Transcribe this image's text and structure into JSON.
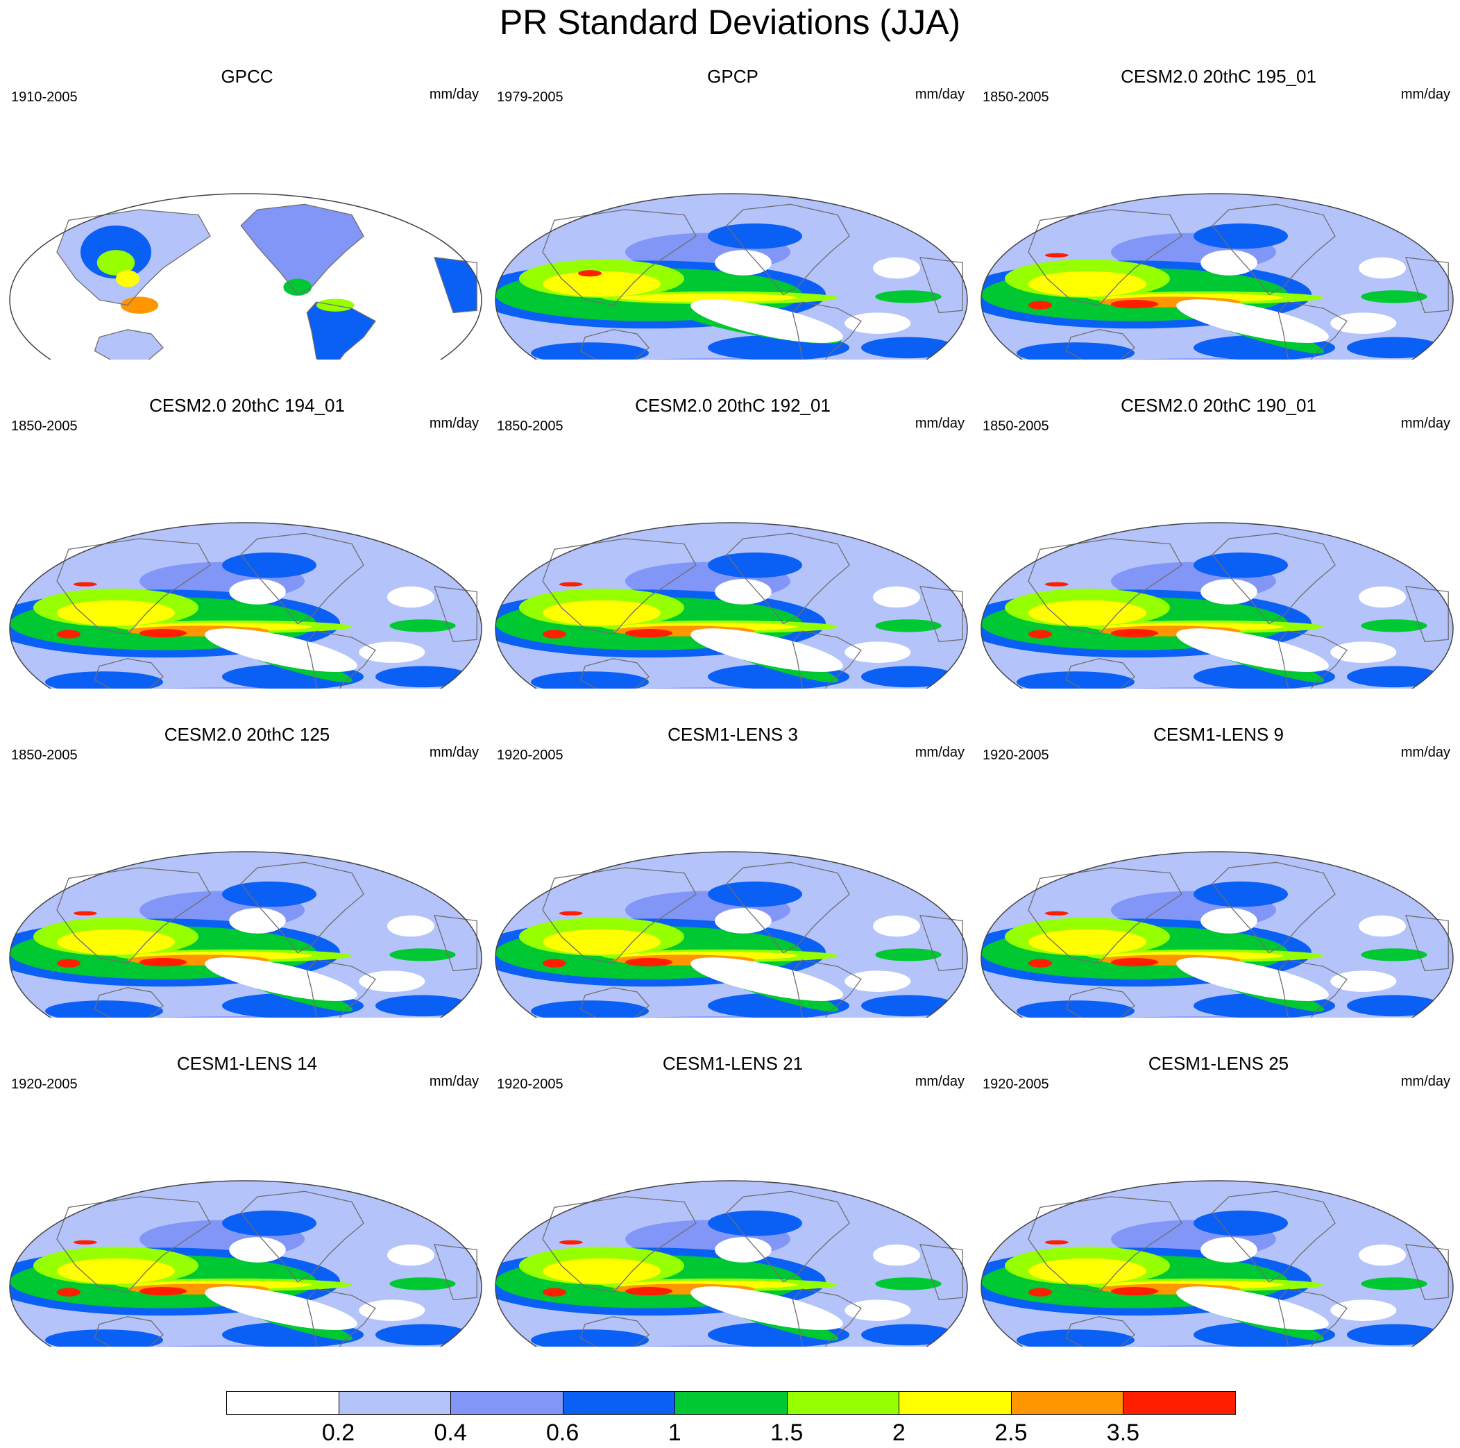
{
  "title": "PR Standard Deviations (JJA)",
  "units": "mm/day",
  "panels": [
    {
      "title": "GPCC",
      "years": "1910-2005",
      "kind": "gpcc"
    },
    {
      "title": "GPCP",
      "years": "1979-2005",
      "kind": "gpcp"
    },
    {
      "title": "CESM2.0 20thC 195_01",
      "years": "1850-2005",
      "kind": "cesm2"
    },
    {
      "title": "CESM2.0 20thC 194_01",
      "years": "1850-2005",
      "kind": "cesm2"
    },
    {
      "title": "CESM2.0 20thC 192_01",
      "years": "1850-2005",
      "kind": "cesm2"
    },
    {
      "title": "CESM2.0 20thC 190_01",
      "years": "1850-2005",
      "kind": "cesm2"
    },
    {
      "title": "CESM2.0 20thC 125",
      "years": "1850-2005",
      "kind": "cesm2"
    },
    {
      "title": "CESM1-LENS 3",
      "years": "1920-2005",
      "kind": "lens"
    },
    {
      "title": "CESM1-LENS 9",
      "years": "1920-2005",
      "kind": "lens"
    },
    {
      "title": "CESM1-LENS 14",
      "years": "1920-2005",
      "kind": "lens"
    },
    {
      "title": "CESM1-LENS 21",
      "years": "1920-2005",
      "kind": "lens"
    },
    {
      "title": "CESM1-LENS 25",
      "years": "1920-2005",
      "kind": "lens"
    }
  ],
  "colorbar": {
    "colors": [
      "#ffffff",
      "#b4c3fa",
      "#8296f8",
      "#0a5ff5",
      "#00c832",
      "#96ff00",
      "#ffff00",
      "#ff9600",
      "#ff1e00"
    ],
    "labels": [
      "0.2",
      "0.4",
      "0.6",
      "1",
      "1.5",
      "2",
      "2.5",
      "3.5"
    ]
  }
}
